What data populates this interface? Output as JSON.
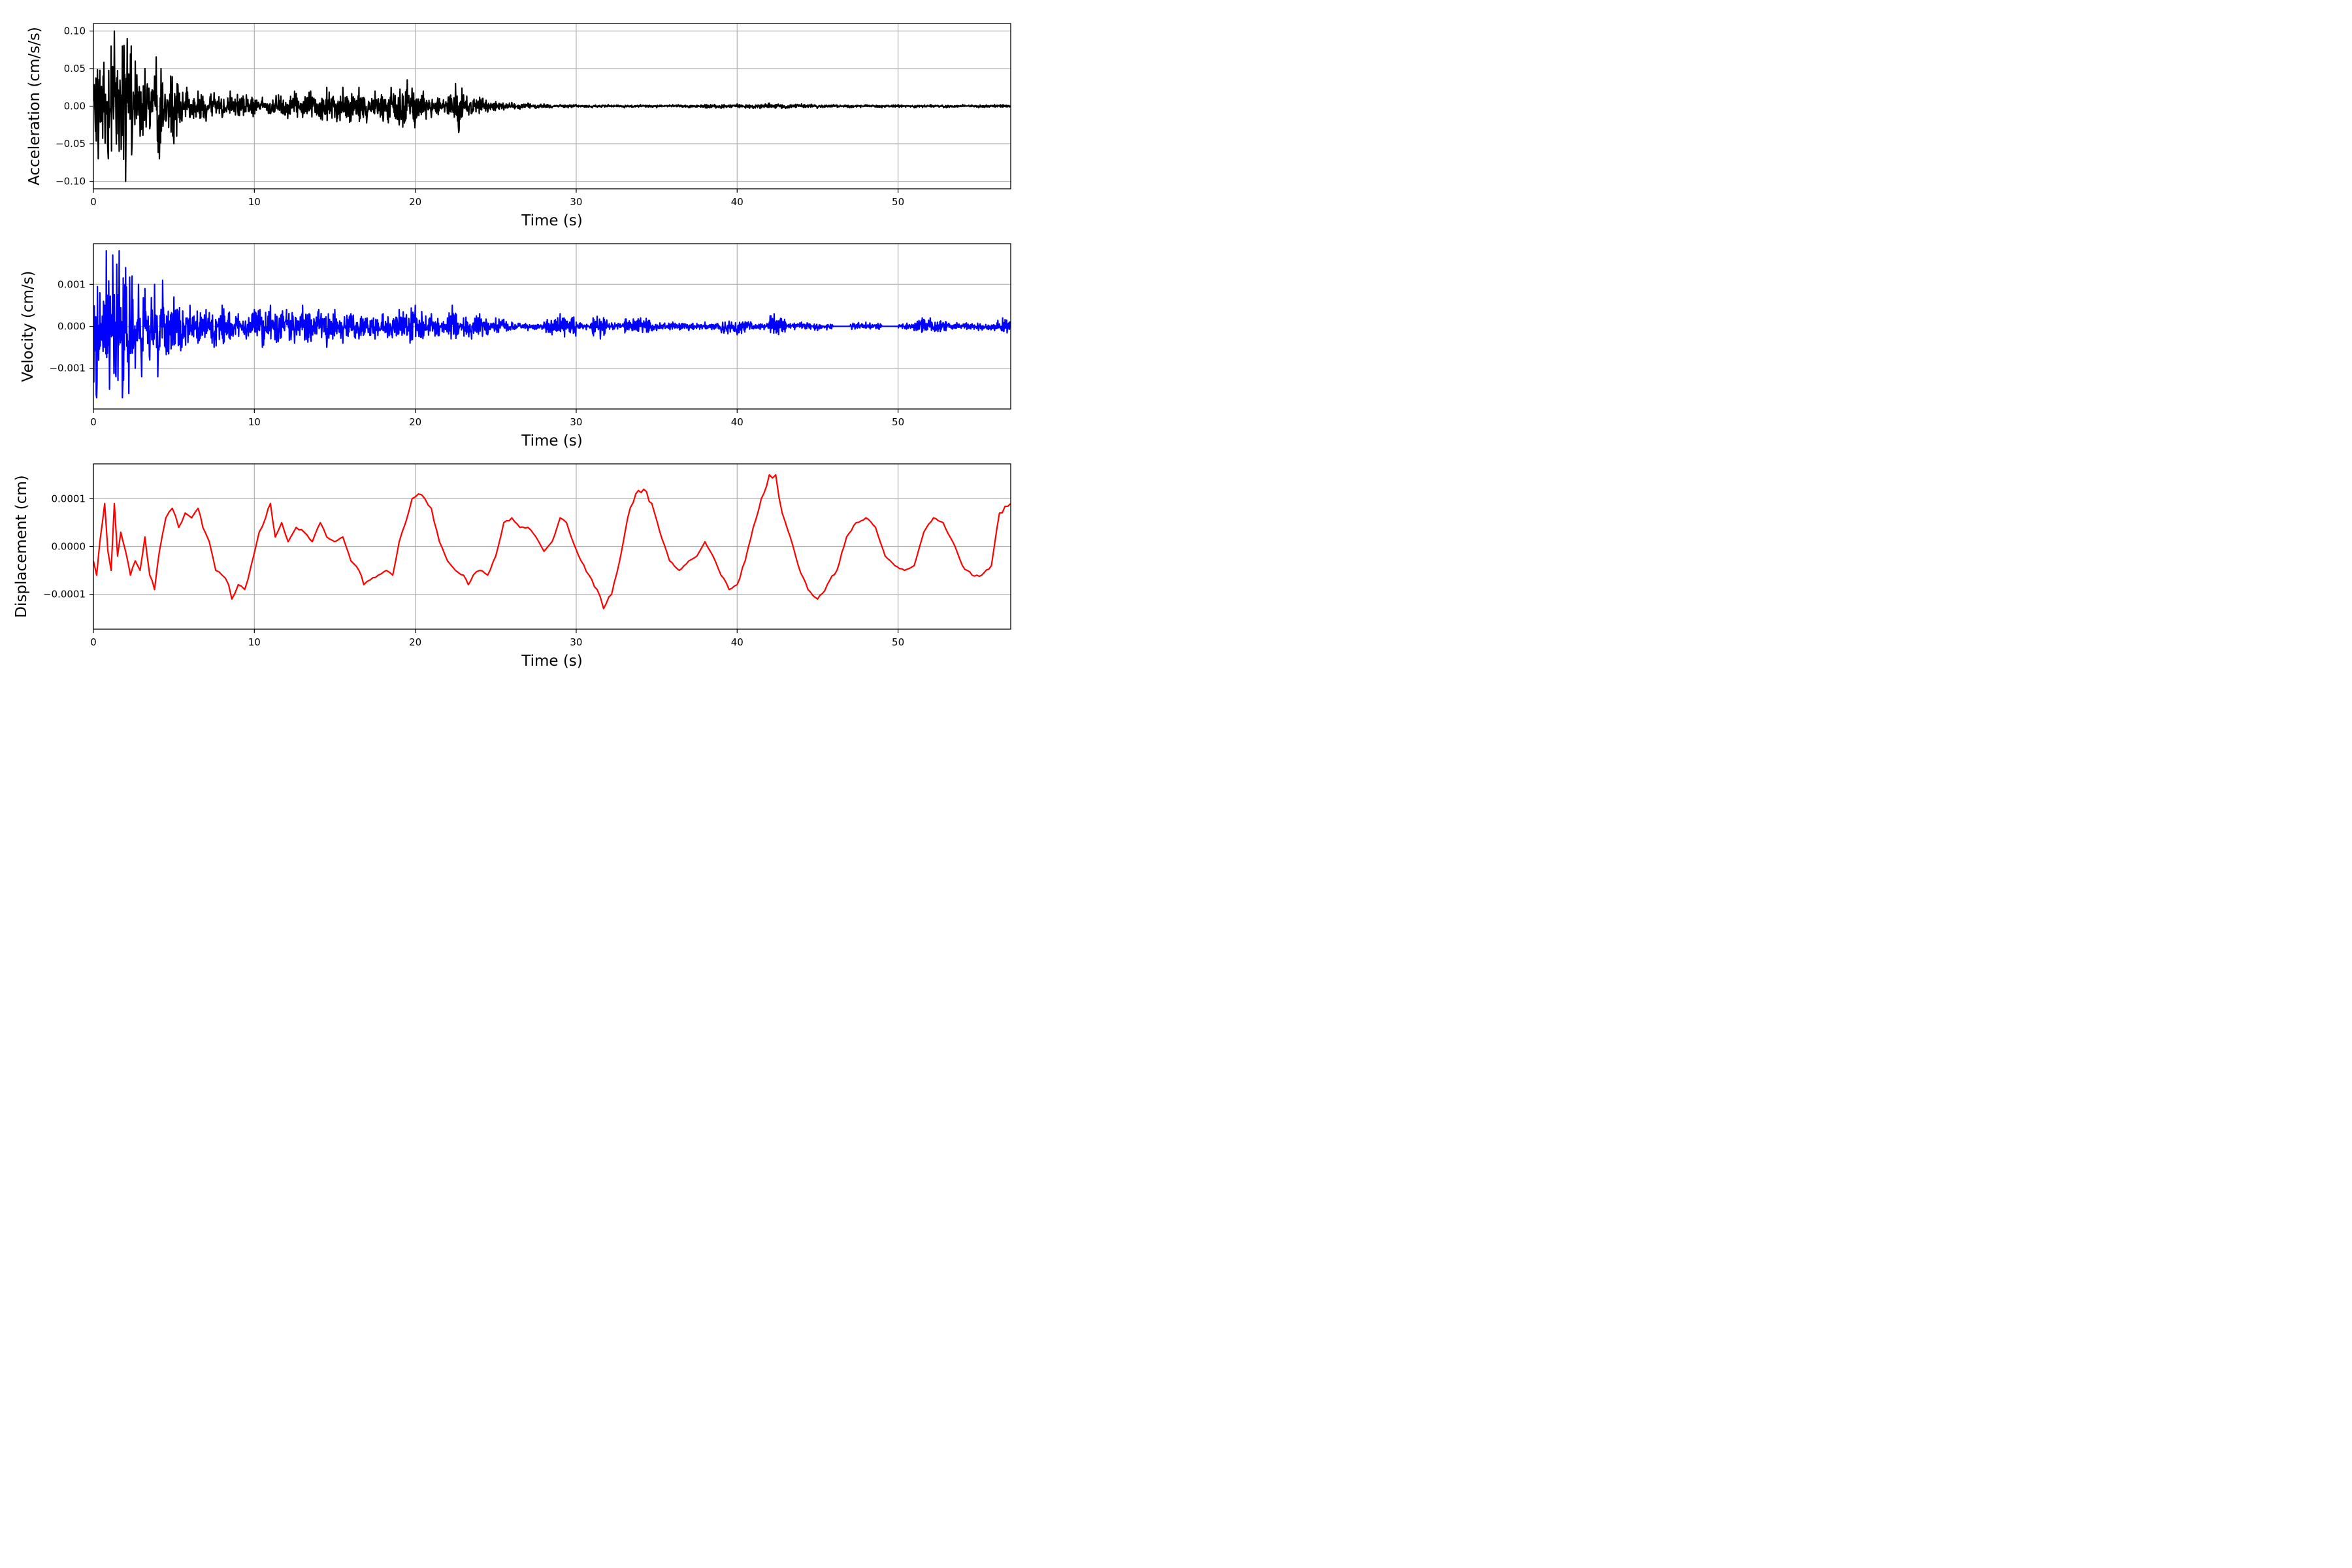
{
  "chart_data": [
    {
      "type": "line",
      "xlabel": "Time (s)",
      "ylabel": "Acceleration (cm/s/s)",
      "xlim": [
        0,
        57
      ],
      "ylim": [
        -0.11,
        0.11
      ],
      "xticks": [
        0,
        10,
        20,
        30,
        40,
        50
      ],
      "xtick_labels": [
        "0",
        "10",
        "20",
        "30",
        "40",
        "50"
      ],
      "yticks": [
        0.1,
        0.05,
        0.0,
        -0.05,
        -0.1
      ],
      "ytick_labels": [
        "0.10",
        "0.05",
        "0.00",
        "−0.05",
        "−0.10"
      ],
      "grid": true,
      "color": "#000000",
      "series": [
        {
          "x": [
            0,
            0.3,
            0.6,
            0.9,
            1.1,
            1.3,
            1.6,
            1.8,
            2.0,
            2.1,
            2.4,
            2.6,
            2.9,
            3.2,
            3.5,
            3.8,
            4.1,
            4.2,
            4.5,
            4.8,
            5.0,
            5.2,
            5.5,
            5.8,
            6.0,
            6.5,
            7.0,
            7.5,
            8.0,
            8.5,
            9.0,
            9.5,
            10.0,
            10.5,
            11.0,
            11.5,
            12.0,
            12.5,
            13.0,
            13.5,
            14.0,
            14.5,
            15.0,
            15.5,
            16.0,
            16.5,
            17.0,
            17.5,
            18.0,
            18.5,
            19.0,
            19.5,
            20.0,
            20.5,
            21.0,
            21.5,
            22.0,
            22.5,
            22.7,
            23.0,
            23.5,
            24.0,
            24.5,
            25.0,
            25.5,
            26.0,
            26.5,
            27.0,
            27.5,
            28.0,
            28.5,
            29.0,
            29.5,
            30.0,
            31.0,
            32.0,
            33.0,
            34.0,
            35.0,
            36.0,
            37.0,
            38.0,
            39.0,
            40.0,
            41.0,
            42.0,
            43.0,
            44.0,
            45.0,
            46.0,
            47.0,
            48.0,
            49.0,
            50.0,
            51.0,
            52.0,
            53.0,
            54.0,
            55.0,
            56.0,
            57.0
          ],
          "y": [
            0.02,
            -0.07,
            0.04,
            -0.06,
            0.08,
            0.1,
            -0.06,
            0.08,
            -0.1,
            0.09,
            -0.05,
            0.06,
            -0.04,
            0.05,
            -0.03,
            0.04,
            -0.07,
            0.05,
            -0.02,
            0.04,
            -0.05,
            0.03,
            -0.02,
            0.025,
            -0.015,
            0.02,
            -0.02,
            0.018,
            -0.015,
            0.02,
            -0.012,
            0.015,
            -0.01,
            0.012,
            -0.01,
            0.015,
            -0.008,
            0.02,
            -0.015,
            0.02,
            -0.01,
            0.025,
            -0.015,
            0.025,
            -0.02,
            0.025,
            -0.015,
            0.02,
            -0.02,
            0.025,
            -0.025,
            0.035,
            -0.02,
            0.02,
            -0.015,
            0.01,
            -0.01,
            0.03,
            -0.035,
            0.015,
            -0.01,
            0.012,
            -0.008,
            0.006,
            -0.005,
            0.005,
            -0.004,
            0.004,
            -0.003,
            0.003,
            -0.002,
            0.002,
            -0.002,
            0.002,
            -0.002,
            0.002,
            -0.002,
            0.002,
            -0.002,
            0.002,
            -0.002,
            0.002,
            -0.003,
            0.003,
            -0.003,
            0.004,
            -0.003,
            0.003,
            -0.002,
            0.002,
            -0.002,
            0.002,
            -0.002,
            0.002,
            -0.002,
            0.002,
            -0.002,
            0.002,
            -0.002,
            0.002,
            -0.001
          ]
        }
      ]
    },
    {
      "type": "line",
      "xlabel": "Time (s)",
      "ylabel": "Velocity (cm/s)",
      "xlim": [
        0,
        57
      ],
      "ylim": [
        -0.00197,
        0.00197
      ],
      "xticks": [
        0,
        10,
        20,
        30,
        40,
        50
      ],
      "xtick_labels": [
        "0",
        "10",
        "20",
        "30",
        "40",
        "50"
      ],
      "yticks": [
        0.001,
        0.0,
        -0.001
      ],
      "ytick_labels": [
        "0.001",
        "0.000",
        "−0.001"
      ],
      "grid": true,
      "color": "#0000ff",
      "series": [
        {
          "x": [
            0,
            0.2,
            0.4,
            0.6,
            0.8,
            1.0,
            1.2,
            1.4,
            1.6,
            1.8,
            2.0,
            2.2,
            2.4,
            2.6,
            2.8,
            3.0,
            3.2,
            3.5,
            3.8,
            4.0,
            4.3,
            4.6,
            5.0,
            5.5,
            6.0,
            6.5,
            7.0,
            7.5,
            8.0,
            8.5,
            9.0,
            9.5,
            10.0,
            10.5,
            11.0,
            11.5,
            12.0,
            12.5,
            13.0,
            13.5,
            14.0,
            14.5,
            15.0,
            15.5,
            16.0,
            16.5,
            17.0,
            17.5,
            18.0,
            18.5,
            19.0,
            19.5,
            20.0,
            20.5,
            21.0,
            21.5,
            22.0,
            22.3,
            22.6,
            23.0,
            23.5,
            24.0,
            24.5,
            25.0,
            26.0,
            27.0,
            28.0,
            28.5,
            29.0,
            30.0,
            31.0,
            31.5,
            32.0,
            33.0,
            34.0,
            35.0,
            36.0,
            37.0,
            38.0,
            39.0,
            40.0,
            41.0,
            42.0,
            42.3,
            43.0,
            44.0,
            45.0,
            46.0,
            47.0,
            48.0,
            49.0,
            50.0,
            51.0,
            51.5,
            52.0,
            53.0,
            54.0,
            55.0,
            56.0,
            56.5,
            57.0
          ],
          "y": [
            0.0003,
            -0.0017,
            0.0008,
            -0.0006,
            0.0018,
            -0.0015,
            0.0017,
            -0.0012,
            0.0018,
            -0.0017,
            0.0014,
            -0.0016,
            0.0012,
            -0.001,
            0.001,
            -0.0012,
            0.0009,
            -0.0008,
            0.001,
            -0.0012,
            0.0011,
            -0.0006,
            0.0007,
            -0.0005,
            0.0005,
            -0.0004,
            0.0004,
            -0.0005,
            0.0005,
            -0.0003,
            0.0003,
            -0.0003,
            0.0004,
            -0.0005,
            0.0005,
            -0.0003,
            0.0004,
            -0.0004,
            0.0005,
            -0.0003,
            0.0004,
            -0.0005,
            0.0004,
            -0.0004,
            0.0003,
            -0.0003,
            0.0002,
            -0.0003,
            0.0003,
            -0.0002,
            0.0004,
            -0.0002,
            0.0005,
            0.0001,
            0.0003,
            -0.0001,
            0.0002,
            0.0005,
            -0.0002,
            0.0002,
            -0.0003,
            0.0003,
            -0.0002,
            0.0002,
            0.0001,
            -0.0001,
            0.0001,
            -0.0002,
            0.0003,
            0.0001,
            -0.0001,
            -0.0003,
            0.0,
            0.0001,
            0.0002,
            -0.0001,
            0.0001,
            -0.0001,
            0.0001,
            -0.0001,
            -0.0002,
            0.0,
            0.0001,
            0.0003,
            0.0001,
            0.0001,
            -0.0001,
            0.0,
            0.0,
            0.0001,
            0.0,
            0.0,
            -0.0001,
            0.0002,
            0.0002,
            0.0001,
            0.0,
            -0.0001,
            -0.0001,
            0.0002,
            0.0001
          ]
        }
      ]
    },
    {
      "type": "line",
      "xlabel": "Time (s)",
      "ylabel": "Displacement (cm)",
      "xlim": [
        0,
        57
      ],
      "ylim": [
        -0.000173,
        0.000173
      ],
      "xticks": [
        0,
        10,
        20,
        30,
        40,
        50
      ],
      "xtick_labels": [
        "0",
        "10",
        "20",
        "30",
        "40",
        "50"
      ],
      "yticks": [
        0.0001,
        0.0,
        -0.0001
      ],
      "ytick_labels": [
        "0.0001",
        "0.0000",
        "−0.0001"
      ],
      "grid": true,
      "color": "#ff0000",
      "series": [
        {
          "x": [
            0,
            0.2,
            0.4,
            0.7,
            0.9,
            1.1,
            1.3,
            1.5,
            1.7,
            2.0,
            2.3,
            2.6,
            2.9,
            3.2,
            3.5,
            3.8,
            4.1,
            4.5,
            4.9,
            5.3,
            5.7,
            6.1,
            6.5,
            6.8,
            7.2,
            7.6,
            8.0,
            8.4,
            8.6,
            9.0,
            9.4,
            9.8,
            10.3,
            10.7,
            11.0,
            11.3,
            11.7,
            12.1,
            12.6,
            13.1,
            13.6,
            14.1,
            14.5,
            15.0,
            15.5,
            16.0,
            16.5,
            16.8,
            17.2,
            17.7,
            18.2,
            18.6,
            19.0,
            19.4,
            19.8,
            20.2,
            20.6,
            21.0,
            21.5,
            22.0,
            22.5,
            23.0,
            23.3,
            23.6,
            24.0,
            24.5,
            25.0,
            25.5,
            26.0,
            26.5,
            27.0,
            27.5,
            28.0,
            28.5,
            29.0,
            29.4,
            29.8,
            30.3,
            30.8,
            31.3,
            31.7,
            32.2,
            32.7,
            33.2,
            33.7,
            34.2,
            34.7,
            35.2,
            35.8,
            36.4,
            37.0,
            37.5,
            38.0,
            38.5,
            39.0,
            39.5,
            40.0,
            40.5,
            41.0,
            41.5,
            42.0,
            42.4,
            42.8,
            43.3,
            43.8,
            44.4,
            45.0,
            45.6,
            46.2,
            46.8,
            47.4,
            48.0,
            48.6,
            49.2,
            49.8,
            50.4,
            51.0,
            51.6,
            52.2,
            52.8,
            53.4,
            54.0,
            54.6,
            55.2,
            55.8,
            56.3,
            57.0
          ],
          "y": [
            -3e-05,
            -6e-05,
            1e-05,
            9e-05,
            -1e-05,
            -5e-05,
            9e-05,
            -2e-05,
            3e-05,
            -1e-05,
            -6e-05,
            -3e-05,
            -5e-05,
            2e-05,
            -6e-05,
            -9e-05,
            -1e-05,
            6e-05,
            8e-05,
            4e-05,
            7e-05,
            6e-05,
            8e-05,
            4e-05,
            1e-05,
            -5e-05,
            -6e-05,
            -8e-05,
            -0.00011,
            -8e-05,
            -9e-05,
            -4e-05,
            3e-05,
            6e-05,
            9e-05,
            2e-05,
            5e-05,
            1e-05,
            4e-05,
            3e-05,
            1e-05,
            5e-05,
            2e-05,
            1e-05,
            2e-05,
            -3e-05,
            -5e-05,
            -8e-05,
            -7e-05,
            -6e-05,
            -5e-05,
            -6e-05,
            1e-05,
            5e-05,
            0.0001,
            0.00011,
            0.0001,
            8e-05,
            1e-05,
            -3e-05,
            -5e-05,
            -6e-05,
            -8e-05,
            -6e-05,
            -5e-05,
            -6e-05,
            -2e-05,
            5e-05,
            6e-05,
            4e-05,
            4e-05,
            2e-05,
            -1e-05,
            1e-05,
            6e-05,
            5e-05,
            1e-05,
            -3e-05,
            -6e-05,
            -9e-05,
            -0.00013,
            -0.0001,
            -3e-05,
            6e-05,
            0.00011,
            0.00012,
            9e-05,
            3e-05,
            -3e-05,
            -5e-05,
            -3e-05,
            -2e-05,
            1e-05,
            -2e-05,
            -6e-05,
            -9e-05,
            -8e-05,
            -3e-05,
            4e-05,
            0.0001,
            0.00015,
            0.00015,
            7e-05,
            2e-05,
            -4e-05,
            -9e-05,
            -0.00011,
            -8e-05,
            -5e-05,
            2e-05,
            5e-05,
            6e-05,
            4e-05,
            -2e-05,
            -4e-05,
            -5e-05,
            -4e-05,
            3e-05,
            6e-05,
            5e-05,
            1e-05,
            -4e-05,
            -6e-05,
            -6e-05,
            -4e-05,
            7e-05,
            9e-05
          ]
        }
      ]
    }
  ]
}
